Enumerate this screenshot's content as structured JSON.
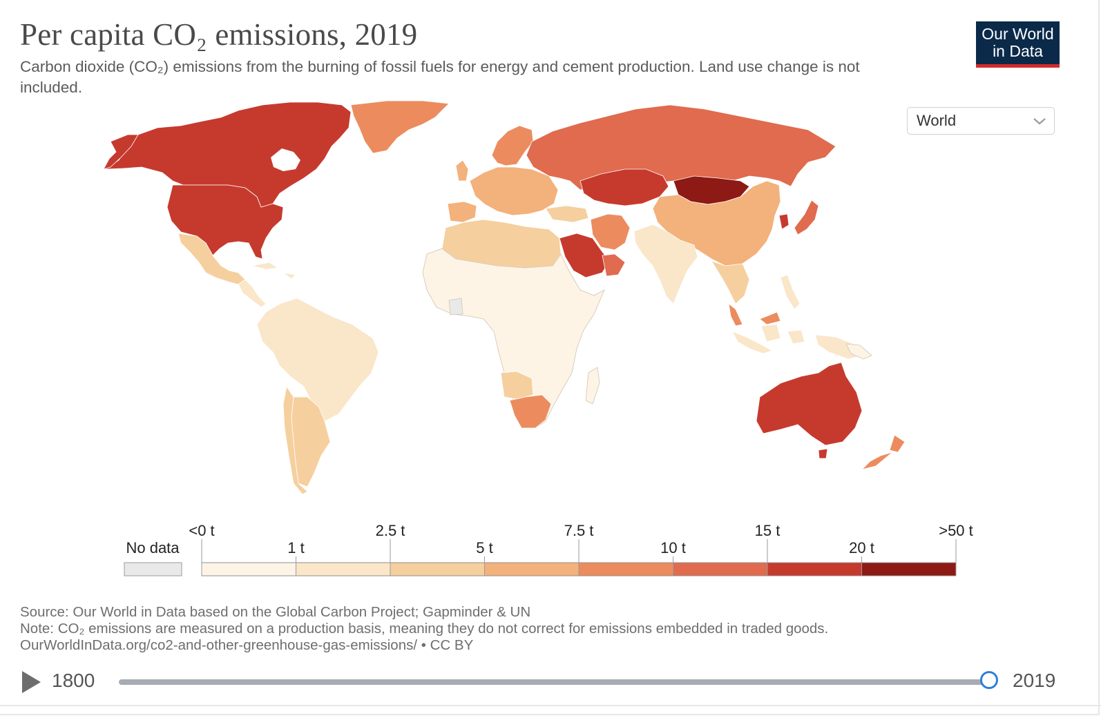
{
  "header": {
    "title": "Per capita CO₂ emissions, 2019",
    "subtitle": "Carbon dioxide (CO₂) emissions from the burning of fossil fuels for energy and cement production. Land use change is not included.",
    "logo_line1": "Our World",
    "logo_line2": "in Data"
  },
  "region_select": {
    "value": "World",
    "icon": "chevron-down-icon"
  },
  "legend": {
    "no_data_label": "No data",
    "no_data_color": "#e9e9e9",
    "top_labels": [
      "<0 t",
      "2.5 t",
      "7.5 t",
      "15 t",
      ">50 t"
    ],
    "bottom_labels": [
      "1 t",
      "5 t",
      "10 t",
      "20 t"
    ],
    "bins": [
      {
        "range": "<0 t – 1 t",
        "color": "#fdf4e6"
      },
      {
        "range": "1 t – 2.5 t",
        "color": "#fae6c9"
      },
      {
        "range": "2.5 t – 5 t",
        "color": "#f6cf9e"
      },
      {
        "range": "5 t – 7.5 t",
        "color": "#f3b17c"
      },
      {
        "range": "7.5 t – 10 t",
        "color": "#ec8c5e"
      },
      {
        "range": "10 t – 15 t",
        "color": "#e06b4e"
      },
      {
        "range": "15 t – 20 t",
        "color": "#c63a2e"
      },
      {
        "range": "20 t – >50 t",
        "color": "#8d1a14"
      }
    ]
  },
  "footer": {
    "source": "Source: Our World in Data based on the Global Carbon Project; Gapminder & UN",
    "note": "Note: CO₂ emissions are measured on a production basis, meaning they do not correct for emissions embedded in traded goods.",
    "url": "OurWorldInData.org/co2-and-other-greenhouse-gas-emissions/ • CC BY"
  },
  "timeline": {
    "start_year": "1800",
    "end_year": "2019",
    "progress": 1.0,
    "play_icon": "play-icon"
  }
}
